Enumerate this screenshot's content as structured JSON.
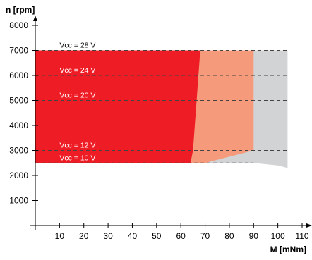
{
  "chart_data": {
    "type": "area",
    "xlabel": "M [mNm]",
    "ylabel": "n [rpm]",
    "xlim": [
      0,
      110
    ],
    "ylim": [
      0,
      8000
    ],
    "xticks": [
      10,
      20,
      30,
      40,
      50,
      60,
      70,
      80,
      90,
      100,
      110
    ],
    "yticks": [
      1000,
      2000,
      3000,
      4000,
      5000,
      6000,
      7000,
      8000
    ],
    "colors": {
      "continuous": "#ee1c25",
      "short_term": "#f59b7c",
      "extended": "#d1d3d4",
      "reference_lines": "#444444"
    },
    "regions": [
      {
        "key": "extended",
        "points": [
          [
            0,
            7000
          ],
          [
            104,
            7000
          ],
          [
            104,
            2300
          ],
          [
            100,
            2400
          ],
          [
            90,
            2500
          ],
          [
            0,
            2500
          ]
        ]
      },
      {
        "key": "short_term",
        "points": [
          [
            0,
            7000
          ],
          [
            90,
            7000
          ],
          [
            90,
            3000
          ],
          [
            78,
            2700
          ],
          [
            70,
            2500
          ],
          [
            0,
            2500
          ]
        ]
      },
      {
        "key": "continuous",
        "points": [
          [
            0,
            7000
          ],
          [
            68,
            7000
          ],
          [
            65,
            3000
          ],
          [
            64,
            2500
          ],
          [
            0,
            2500
          ]
        ]
      }
    ],
    "reference_lines": [
      {
        "y": 7000,
        "x_end": 104
      },
      {
        "y": 6000,
        "x_end": 104
      },
      {
        "y": 5000,
        "x_end": 104
      },
      {
        "y": 3000,
        "x_end": 104
      },
      {
        "y": 2500,
        "x_end": 90
      }
    ],
    "voltage_labels": [
      {
        "text": "Vcc = 28 V",
        "x": 10,
        "y": 7000,
        "color": "#000000"
      },
      {
        "text": "Vcc = 24 V",
        "x": 10,
        "y": 6000,
        "color": "#ffffff"
      },
      {
        "text": "Vcc = 20 V",
        "x": 10,
        "y": 5000,
        "color": "#ffffff"
      },
      {
        "text": "Vcc = 12 V",
        "x": 10,
        "y": 3000,
        "color": "#ffffff"
      },
      {
        "text": "Vcc = 10 V",
        "x": 10,
        "y": 2500,
        "color": "#ffffff"
      }
    ]
  }
}
